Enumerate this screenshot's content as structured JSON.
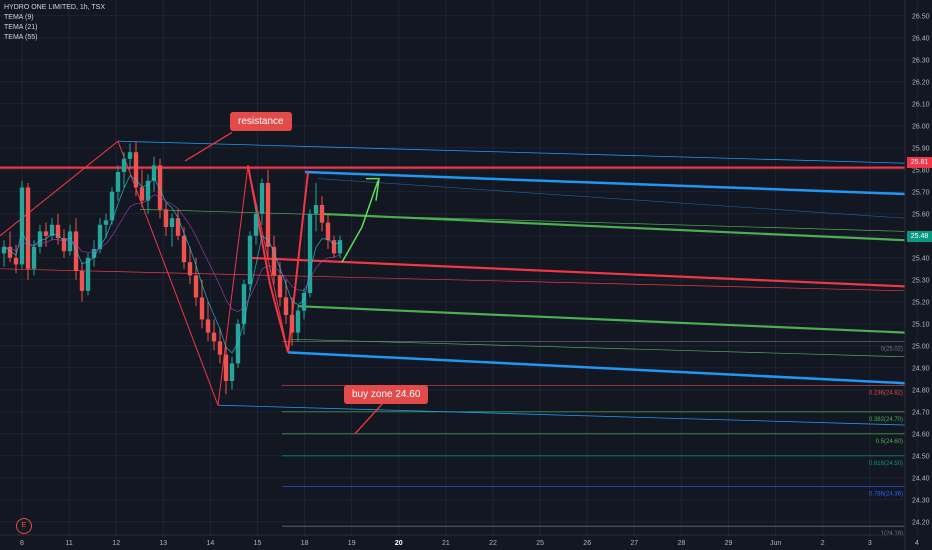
{
  "legend": {
    "title": "HYDRO ONE LIMITED, 1h, TSX",
    "indicators": [
      "TEMA (9)",
      "TEMA (21)",
      "TEMA (55)"
    ]
  },
  "annotations": {
    "resistance_label": "resistance",
    "buy_zone_label": "buy zone 24.60",
    "earnings_badge": "E"
  },
  "price_tags": {
    "resistance_tag": "25.81",
    "last_price_tag": "25.48"
  },
  "fib_levels": [
    {
      "label": "0(25.02)",
      "value": 25.02,
      "color": "#787b86"
    },
    {
      "label": "0.236(24.82)",
      "value": 24.82,
      "color": "#e34b4b"
    },
    {
      "label": "0.382(24.70)",
      "value": 24.7,
      "color": "#4caf50"
    },
    {
      "label": "0.5(24.60)",
      "value": 24.6,
      "color": "#4caf50"
    },
    {
      "label": "0.618(24.50)",
      "value": 24.5,
      "color": "#089981"
    },
    {
      "label": "0.786(24.36)",
      "value": 24.36,
      "color": "#2962ff"
    },
    {
      "label": "1(24.18)",
      "value": 24.18,
      "color": "#787b86"
    }
  ],
  "colors": {
    "background": "#131722",
    "grid": "#1f2433",
    "up": "#26a69a",
    "down": "#ef5350",
    "resistance": "#f23645",
    "channel_blue": "#2196f3",
    "channel_green": "#4caf50",
    "channel_red": "#f23645"
  },
  "chart_data": {
    "type": "candlestick",
    "title": "HYDRO ONE LIMITED, 1h, TSX",
    "x_ticks": [
      "8",
      "11",
      "12",
      "13",
      "14",
      "15",
      "18",
      "19",
      "20",
      "21",
      "22",
      "25",
      "26",
      "27",
      "28",
      "29",
      "Jun",
      "2",
      "3",
      "4"
    ],
    "highlighted_tick": "20",
    "y_ticks": [
      "26.50",
      "26.40",
      "26.30",
      "26.20",
      "26.10",
      "26.00",
      "25.90",
      "25.80",
      "25.70",
      "25.60",
      "25.50",
      "25.40",
      "25.30",
      "25.20",
      "25.10",
      "25.00",
      "24.90",
      "24.80",
      "24.70",
      "24.60",
      "24.50",
      "24.40",
      "24.30",
      "24.20"
    ],
    "ylim": [
      24.14,
      26.54
    ],
    "resistance_level": 25.81,
    "last_price": 25.48,
    "candles": [
      {
        "o": 25.42,
        "h": 25.48,
        "l": 25.36,
        "c": 25.45
      },
      {
        "o": 25.45,
        "h": 25.52,
        "l": 25.38,
        "c": 25.4
      },
      {
        "o": 25.4,
        "h": 25.46,
        "l": 25.33,
        "c": 25.37
      },
      {
        "o": 25.37,
        "h": 25.75,
        "l": 25.35,
        "c": 25.72
      },
      {
        "o": 25.72,
        "h": 25.74,
        "l": 25.3,
        "c": 25.35
      },
      {
        "o": 25.35,
        "h": 25.48,
        "l": 25.32,
        "c": 25.45
      },
      {
        "o": 25.45,
        "h": 25.55,
        "l": 25.42,
        "c": 25.52
      },
      {
        "o": 25.52,
        "h": 25.56,
        "l": 25.45,
        "c": 25.5
      },
      {
        "o": 25.5,
        "h": 25.58,
        "l": 25.48,
        "c": 25.55
      },
      {
        "o": 25.55,
        "h": 25.6,
        "l": 25.46,
        "c": 25.49
      },
      {
        "o": 25.49,
        "h": 25.53,
        "l": 25.4,
        "c": 25.43
      },
      {
        "o": 25.43,
        "h": 25.55,
        "l": 25.41,
        "c": 25.52
      },
      {
        "o": 25.52,
        "h": 25.58,
        "l": 25.3,
        "c": 25.34
      },
      {
        "o": 25.34,
        "h": 25.38,
        "l": 25.2,
        "c": 25.25
      },
      {
        "o": 25.25,
        "h": 25.42,
        "l": 25.23,
        "c": 25.4
      },
      {
        "o": 25.4,
        "h": 25.48,
        "l": 25.36,
        "c": 25.44
      },
      {
        "o": 25.44,
        "h": 25.58,
        "l": 25.42,
        "c": 25.55
      },
      {
        "o": 25.55,
        "h": 25.6,
        "l": 25.49,
        "c": 25.57
      },
      {
        "o": 25.57,
        "h": 25.72,
        "l": 25.55,
        "c": 25.7
      },
      {
        "o": 25.7,
        "h": 25.82,
        "l": 25.66,
        "c": 25.79
      },
      {
        "o": 25.79,
        "h": 25.88,
        "l": 25.72,
        "c": 25.85
      },
      {
        "o": 25.85,
        "h": 25.92,
        "l": 25.8,
        "c": 25.88
      },
      {
        "o": 25.88,
        "h": 25.93,
        "l": 25.68,
        "c": 25.72
      },
      {
        "o": 25.72,
        "h": 25.8,
        "l": 25.63,
        "c": 25.66
      },
      {
        "o": 25.66,
        "h": 25.78,
        "l": 25.6,
        "c": 25.75
      },
      {
        "o": 25.75,
        "h": 25.86,
        "l": 25.7,
        "c": 25.82
      },
      {
        "o": 25.82,
        "h": 25.85,
        "l": 25.58,
        "c": 25.62
      },
      {
        "o": 25.62,
        "h": 25.65,
        "l": 25.5,
        "c": 25.54
      },
      {
        "o": 25.54,
        "h": 25.6,
        "l": 25.45,
        "c": 25.58
      },
      {
        "o": 25.58,
        "h": 25.62,
        "l": 25.48,
        "c": 25.5
      },
      {
        "o": 25.5,
        "h": 25.54,
        "l": 25.35,
        "c": 25.38
      },
      {
        "o": 25.38,
        "h": 25.45,
        "l": 25.28,
        "c": 25.32
      },
      {
        "o": 25.32,
        "h": 25.4,
        "l": 25.18,
        "c": 25.22
      },
      {
        "o": 25.22,
        "h": 25.3,
        "l": 25.08,
        "c": 25.12
      },
      {
        "o": 25.12,
        "h": 25.2,
        "l": 25.02,
        "c": 25.06
      },
      {
        "o": 25.06,
        "h": 25.12,
        "l": 24.98,
        "c": 25.02
      },
      {
        "o": 25.02,
        "h": 25.08,
        "l": 24.92,
        "c": 24.96
      },
      {
        "o": 24.96,
        "h": 25.0,
        "l": 24.78,
        "c": 24.84
      },
      {
        "o": 24.84,
        "h": 24.95,
        "l": 24.8,
        "c": 24.92
      },
      {
        "o": 24.92,
        "h": 25.12,
        "l": 24.9,
        "c": 25.1
      },
      {
        "o": 25.1,
        "h": 25.3,
        "l": 25.05,
        "c": 25.28
      },
      {
        "o": 25.28,
        "h": 25.52,
        "l": 25.25,
        "c": 25.5
      },
      {
        "o": 25.5,
        "h": 25.64,
        "l": 25.46,
        "c": 25.6
      },
      {
        "o": 25.6,
        "h": 25.76,
        "l": 25.55,
        "c": 25.74
      },
      {
        "o": 25.74,
        "h": 25.8,
        "l": 25.4,
        "c": 25.45
      },
      {
        "o": 25.45,
        "h": 25.5,
        "l": 25.28,
        "c": 25.32
      },
      {
        "o": 25.32,
        "h": 25.38,
        "l": 25.18,
        "c": 25.22
      },
      {
        "o": 25.22,
        "h": 25.3,
        "l": 25.1,
        "c": 25.14
      },
      {
        "o": 25.14,
        "h": 25.22,
        "l": 25.0,
        "c": 25.06
      },
      {
        "o": 25.06,
        "h": 25.18,
        "l": 25.02,
        "c": 25.16
      },
      {
        "o": 25.16,
        "h": 25.26,
        "l": 25.12,
        "c": 25.24
      },
      {
        "o": 25.24,
        "h": 25.62,
        "l": 25.22,
        "c": 25.6
      },
      {
        "o": 25.6,
        "h": 25.74,
        "l": 25.52,
        "c": 25.64
      },
      {
        "o": 25.64,
        "h": 25.68,
        "l": 25.52,
        "c": 25.56
      },
      {
        "o": 25.56,
        "h": 25.6,
        "l": 25.44,
        "c": 25.48
      },
      {
        "o": 25.48,
        "h": 25.5,
        "l": 25.4,
        "c": 25.42
      },
      {
        "o": 25.42,
        "h": 25.5,
        "l": 25.4,
        "c": 25.48
      }
    ]
  }
}
